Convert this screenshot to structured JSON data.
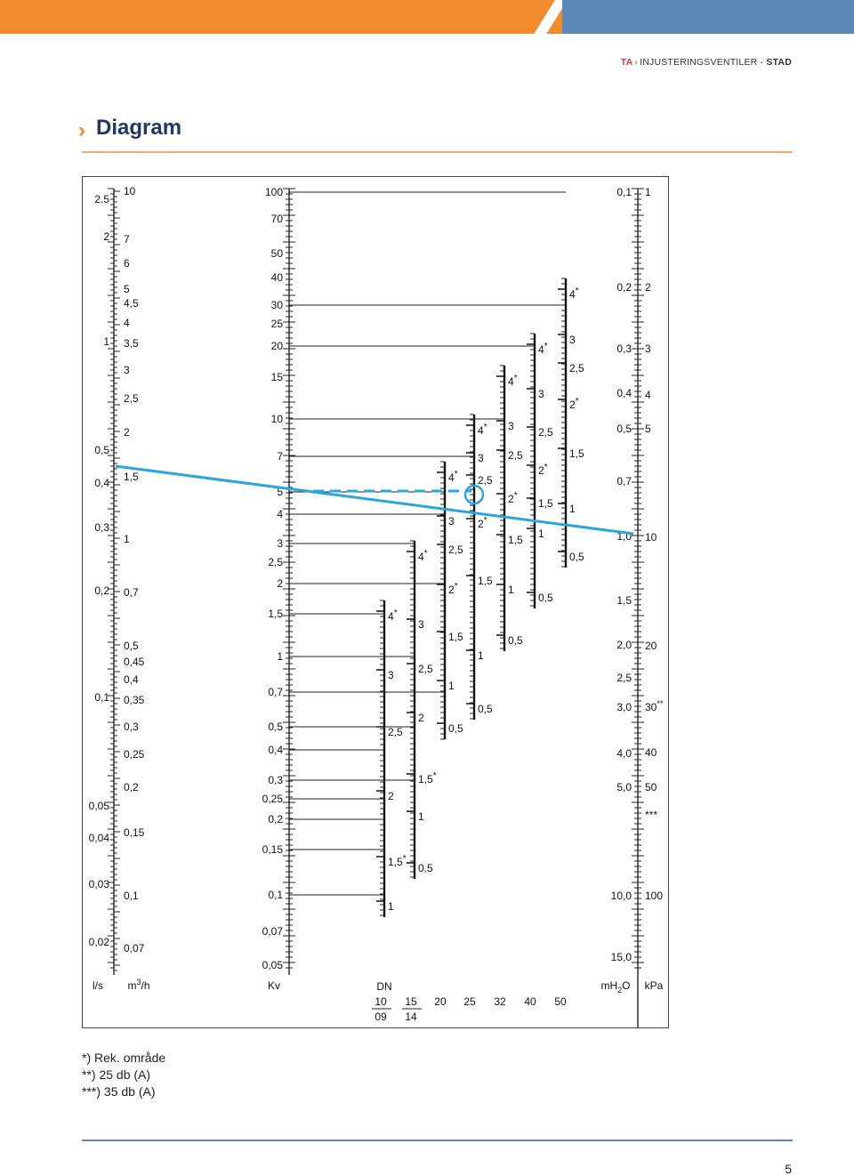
{
  "header": {
    "brand": "TA",
    "product": "INJUSTERINGSVENTILER",
    "separator": " - ",
    "variant": "STAD"
  },
  "page_title": "Diagram",
  "axes": {
    "ls": {
      "unit": "l/s",
      "labels": [
        {
          "v": "2.5",
          "y": 224
        },
        {
          "v": "2",
          "y": 266
        },
        {
          "v": "1",
          "y": 384
        },
        {
          "v": "0,5",
          "y": 506
        },
        {
          "v": "0,4",
          "y": 543
        },
        {
          "v": "0,3",
          "y": 593
        },
        {
          "v": "0,2",
          "y": 664
        },
        {
          "v": "0,1",
          "y": 784
        },
        {
          "v": "0,05",
          "y": 906
        },
        {
          "v": "0,04",
          "y": 942
        },
        {
          "v": "0,03",
          "y": 994
        },
        {
          "v": "0,02",
          "y": 1059
        }
      ]
    },
    "m3h": {
      "unit": "m3/h",
      "labels": [
        {
          "v": "10",
          "y": 215
        },
        {
          "v": "7",
          "y": 269
        },
        {
          "v": "6",
          "y": 296
        },
        {
          "v": "5",
          "y": 325
        },
        {
          "v": "4,5",
          "y": 341
        },
        {
          "v": "4",
          "y": 363
        },
        {
          "v": "3,5",
          "y": 386
        },
        {
          "v": "3",
          "y": 416
        },
        {
          "v": "2,5",
          "y": 448
        },
        {
          "v": "2",
          "y": 486
        },
        {
          "v": "1,5",
          "y": 536
        },
        {
          "v": "1",
          "y": 606
        },
        {
          "v": "0,7",
          "y": 666
        },
        {
          "v": "0,5",
          "y": 726
        },
        {
          "v": "0,45",
          "y": 744
        },
        {
          "v": "0,4",
          "y": 764
        },
        {
          "v": "0,35",
          "y": 787
        },
        {
          "v": "0,3",
          "y": 817
        },
        {
          "v": "0,25",
          "y": 848
        },
        {
          "v": "0,2",
          "y": 885
        },
        {
          "v": "0,15",
          "y": 936
        },
        {
          "v": "0,1",
          "y": 1007
        },
        {
          "v": "0,07",
          "y": 1066
        }
      ]
    },
    "kv": {
      "unit": "Kv",
      "labels": [
        {
          "v": "100",
          "y": 216
        },
        {
          "v": "70",
          "y": 246
        },
        {
          "v": "50",
          "y": 285
        },
        {
          "v": "40",
          "y": 312
        },
        {
          "v": "30",
          "y": 343
        },
        {
          "v": "25",
          "y": 364
        },
        {
          "v": "20",
          "y": 389
        },
        {
          "v": "15",
          "y": 424
        },
        {
          "v": "10",
          "y": 471
        },
        {
          "v": "7",
          "y": 513
        },
        {
          "v": "5",
          "y": 553
        },
        {
          "v": "4",
          "y": 578
        },
        {
          "v": "3",
          "y": 611
        },
        {
          "v": "2,5",
          "y": 632
        },
        {
          "v": "2",
          "y": 656
        },
        {
          "v": "1,5",
          "y": 690
        },
        {
          "v": "1",
          "y": 738
        },
        {
          "v": "0,7",
          "y": 778
        },
        {
          "v": "0,5",
          "y": 817
        },
        {
          "v": "0,4",
          "y": 843
        },
        {
          "v": "0,3",
          "y": 877
        },
        {
          "v": "0,25",
          "y": 898
        },
        {
          "v": "0,2",
          "y": 921
        },
        {
          "v": "0,15",
          "y": 955
        },
        {
          "v": "0,1",
          "y": 1006
        },
        {
          "v": "0,07",
          "y": 1047
        },
        {
          "v": "0,05",
          "y": 1085
        }
      ]
    },
    "mh2o": {
      "unit": "mH2O",
      "labels": [
        {
          "v": "0,1",
          "y": 216
        },
        {
          "v": "0,2",
          "y": 323
        },
        {
          "v": "0,3",
          "y": 392
        },
        {
          "v": "0,4",
          "y": 442
        },
        {
          "v": "0,5",
          "y": 482
        },
        {
          "v": "0,7",
          "y": 541
        },
        {
          "v": "1,0",
          "y": 603
        },
        {
          "v": "1,5",
          "y": 675
        },
        {
          "v": "2,0",
          "y": 725
        },
        {
          "v": "2,5",
          "y": 762
        },
        {
          "v": "3,0",
          "y": 795
        },
        {
          "v": "4,0",
          "y": 847
        },
        {
          "v": "5,0",
          "y": 885
        },
        {
          "v": "10,0",
          "y": 1007
        },
        {
          "v": "15,0",
          "y": 1076
        }
      ]
    },
    "kpa": {
      "unit": "kPa",
      "labels": [
        {
          "v": "1",
          "y": 216
        },
        {
          "v": "2",
          "y": 323
        },
        {
          "v": "3",
          "y": 392
        },
        {
          "v": "4",
          "y": 444
        },
        {
          "v": "5",
          "y": 482
        },
        {
          "v": "10",
          "y": 604
        },
        {
          "v": "20",
          "y": 726
        },
        {
          "v": "30",
          "y": 795,
          "sup": "**"
        },
        {
          "v": "40",
          "y": 846
        },
        {
          "v": "50",
          "y": 885
        },
        {
          "v": "***",
          "y": 916
        },
        {
          "v": "100",
          "y": 1007
        }
      ]
    }
  },
  "valve_scales": [
    {
      "dn": "10",
      "labels": [
        {
          "v": "4",
          "star": true,
          "y": 697
        },
        {
          "v": "3",
          "y": 763
        },
        {
          "v": "2,5",
          "y": 827
        },
        {
          "v": "2",
          "y": 899
        },
        {
          "v": "1,5",
          "star": true,
          "y": 973
        },
        {
          "v": "1",
          "y": 1023
        }
      ]
    },
    {
      "dn": "15",
      "labels": [
        {
          "v": "4",
          "star": true,
          "y": 630
        },
        {
          "v": "3",
          "y": 706
        },
        {
          "v": "2,5",
          "y": 756
        },
        {
          "v": "2",
          "y": 811
        },
        {
          "v": "1,5",
          "star": true,
          "y": 880
        },
        {
          "v": "1",
          "y": 922
        },
        {
          "v": "0,5",
          "y": 980
        }
      ]
    },
    {
      "dn": "20",
      "labels": [
        {
          "v": "4",
          "star": true,
          "y": 541
        },
        {
          "v": "3",
          "y": 590
        },
        {
          "v": "2,5",
          "y": 622
        },
        {
          "v": "2",
          "star": true,
          "y": 667
        },
        {
          "v": "1,5",
          "y": 720
        },
        {
          "v": "1",
          "y": 775
        },
        {
          "v": "0,5",
          "y": 823
        }
      ]
    },
    {
      "dn": "25",
      "labels": [
        {
          "v": "4",
          "star": true,
          "y": 488
        },
        {
          "v": "3",
          "y": 519
        },
        {
          "v": "2,5",
          "y": 544
        },
        {
          "v": "2",
          "star": true,
          "y": 593
        },
        {
          "v": "1,5",
          "y": 657
        },
        {
          "v": "1",
          "y": 741
        },
        {
          "v": "0,5",
          "y": 801
        }
      ]
    },
    {
      "dn": "32",
      "labels": [
        {
          "v": "4",
          "star": true,
          "y": 433
        },
        {
          "v": "3",
          "y": 483
        },
        {
          "v": "2,5",
          "y": 516
        },
        {
          "v": "2",
          "star": true,
          "y": 565
        },
        {
          "v": "1,5",
          "y": 611
        },
        {
          "v": "1",
          "y": 667
        },
        {
          "v": "0,5",
          "y": 724
        }
      ]
    },
    {
      "dn": "40",
      "labels": [
        {
          "v": "4",
          "star": true,
          "y": 397
        },
        {
          "v": "3",
          "y": 447
        },
        {
          "v": "2,5",
          "y": 490
        },
        {
          "v": "2",
          "star": true,
          "y": 533
        },
        {
          "v": "1,5",
          "y": 570
        },
        {
          "v": "1",
          "y": 604
        },
        {
          "v": "0,5",
          "y": 676
        }
      ]
    },
    {
      "dn": "50",
      "labels": [
        {
          "v": "4",
          "star": true,
          "y": 335
        },
        {
          "v": "3",
          "y": 386
        },
        {
          "v": "2,5",
          "y": 418
        },
        {
          "v": "2",
          "star": true,
          "y": 459
        },
        {
          "v": "1,5",
          "y": 514
        },
        {
          "v": "1",
          "y": 576
        },
        {
          "v": "0,5",
          "y": 630
        }
      ]
    }
  ],
  "dn_row": {
    "label": "DN",
    "top": [
      "10",
      "15",
      "20",
      "25",
      "32",
      "40",
      "50"
    ],
    "bottom": [
      "09",
      "14"
    ]
  },
  "example_line": {
    "color": "#29a6df"
  },
  "footnotes": [
    {
      "mark": "*)",
      "text": "Rek. område"
    },
    {
      "mark": "**)",
      "text": "25 db (A)"
    },
    {
      "mark": "***)",
      "text": "35 db (A)"
    }
  ],
  "page_number": "5"
}
